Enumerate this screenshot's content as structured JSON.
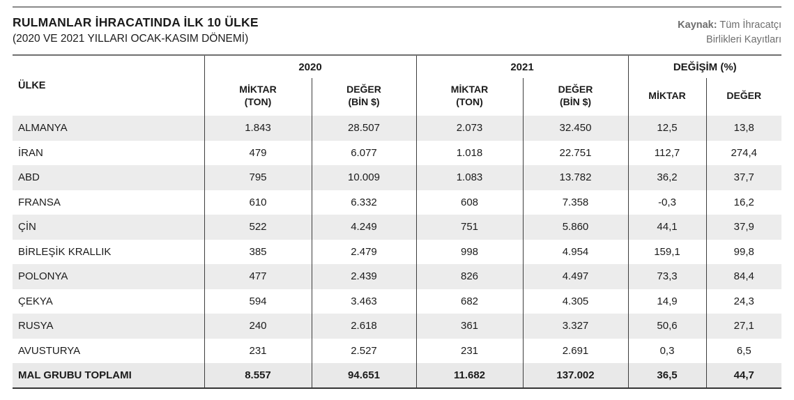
{
  "header": {
    "title": "RULMANLAR İHRACATINDA İLK 10 ÜLKE",
    "subtitle": "(2020 VE 2021 YILLARI OCAK-KASIM DÖNEMİ)",
    "source_label": "Kaynak:",
    "source_line1": "Tüm İhracatçı",
    "source_line2": "Birlikleri Kayıtları"
  },
  "table": {
    "country_header": "ÜLKE",
    "groups": [
      {
        "label": "2020",
        "sub": [
          "MİKTAR\n(TON)",
          "DEĞER\n(BİN $)"
        ]
      },
      {
        "label": "2021",
        "sub": [
          "MİKTAR\n(TON)",
          "DEĞER\n(BİN $)"
        ]
      },
      {
        "label": "DEĞİŞİM (%)",
        "sub": [
          "MİKTAR",
          "DEĞER"
        ]
      }
    ]
  },
  "colors": {
    "text": "#1b1b1b",
    "source_text": "#6e6e6e",
    "rule_gray": "#8a8a8a",
    "table_rule": "#6f6f6f",
    "divider": "#3c3c3c",
    "bottom_rule": "#343434",
    "row_alt": "#ececec",
    "total_row_bg": "#e9e9e9"
  },
  "chart_data": {
    "type": "table",
    "title": "RULMANLAR İHRACATINDA İLK 10 ÜLKE",
    "subtitle": "(2020 VE 2021 YILLARI OCAK-KASIM DÖNEMİ)",
    "source": "Kaynak: Tüm İhracatçı Birlikleri Kayıtları",
    "column_groups": [
      "2020",
      "2021",
      "DEĞİŞİM (%)"
    ],
    "columns": [
      "ÜLKE",
      "2020 MİKTAR (TON)",
      "2020 DEĞER (BİN $)",
      "2021 MİKTAR (TON)",
      "2021 DEĞER (BİN $)",
      "DEĞİŞİM MİKTAR (%)",
      "DEĞİŞİM DEĞER (%)"
    ],
    "rows": [
      [
        "ALMANYA",
        "1.843",
        "28.507",
        "2.073",
        "32.450",
        "12,5",
        "13,8"
      ],
      [
        "İRAN",
        "479",
        "6.077",
        "1.018",
        "22.751",
        "112,7",
        "274,4"
      ],
      [
        "ABD",
        "795",
        "10.009",
        "1.083",
        "13.782",
        "36,2",
        "37,7"
      ],
      [
        "FRANSA",
        "610",
        "6.332",
        "608",
        "7.358",
        "-0,3",
        "16,2"
      ],
      [
        "ÇİN",
        "522",
        "4.249",
        "751",
        "5.860",
        "44,1",
        "37,9"
      ],
      [
        "BİRLEŞİK KRALLIK",
        "385",
        "2.479",
        "998",
        "4.954",
        "159,1",
        "99,8"
      ],
      [
        "POLONYA",
        "477",
        "2.439",
        "826",
        "4.497",
        "73,3",
        "84,4"
      ],
      [
        "ÇEKYA",
        "594",
        "3.463",
        "682",
        "4.305",
        "14,9",
        "24,3"
      ],
      [
        "RUSYA",
        "240",
        "2.618",
        "361",
        "3.327",
        "50,6",
        "27,1"
      ],
      [
        "AVUSTURYA",
        "231",
        "2.527",
        "231",
        "2.691",
        "0,3",
        "6,5"
      ]
    ],
    "total_row": [
      "MAL GRUBU TOPLAMI",
      "8.557",
      "94.651",
      "11.682",
      "137.002",
      "36,5",
      "44,7"
    ]
  }
}
